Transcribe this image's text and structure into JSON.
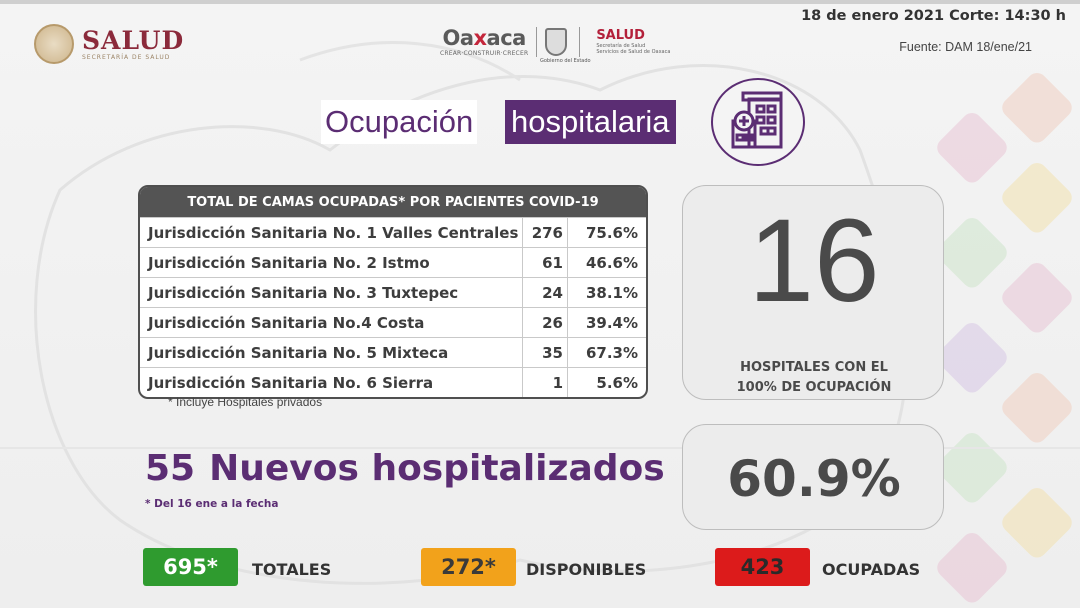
{
  "header": {
    "left_logo_title": "SALUD",
    "left_logo_subtitle": "SECRETARÍA DE SALUD",
    "oaxaca_word_pre": "Oa",
    "oaxaca_word_x": "x",
    "oaxaca_word_post": "aca",
    "oaxaca_slogan": "CREAR·CONSTRUIR·CRECER",
    "gobierno_sub": "Gobierno del Estado",
    "right_logo_title": "SALUD",
    "right_logo_subtitle_1": "Secretaría de Salud",
    "right_logo_subtitle_2": "Servicios de Salud de Oaxaca",
    "date": "18 de enero 2021 Corte: 14:30 h",
    "source": "Fuente: DAM 18/ene/21"
  },
  "title": {
    "part1": "Ocupación",
    "part2": "hospitalaria",
    "icon": "hospital-building-icon"
  },
  "table": {
    "header": "TOTAL DE CAMAS OCUPADAS* POR PACIENTES COVID-19",
    "rows": [
      {
        "name": "Jurisdicción Sanitaria No. 1 Valles Centrales",
        "count": "276",
        "pct": "75.6%"
      },
      {
        "name": "Jurisdicción Sanitaria No. 2 Istmo",
        "count": "61",
        "pct": "46.6%"
      },
      {
        "name": "Jurisdicción Sanitaria No. 3 Tuxtepec",
        "count": "24",
        "pct": "38.1%"
      },
      {
        "name": "Jurisdicción Sanitaria No.4 Costa",
        "count": "26",
        "pct": "39.4%"
      },
      {
        "name": "Jurisdicción Sanitaria No. 5 Mixteca",
        "count": "35",
        "pct": "67.3%"
      },
      {
        "name": "Jurisdicción Sanitaria No. 6 Sierra",
        "count": "1",
        "pct": "5.6%"
      }
    ],
    "note": "* Incluye Hospitales privados"
  },
  "hospitals_full": {
    "value": "16",
    "label_line1": "HOSPITALES CON EL",
    "label_line2": "100% DE OCUPACIÓN"
  },
  "occupancy": {
    "value": "60.9%"
  },
  "new_hospitalized": {
    "count": "55",
    "label": "Nuevos hospitalizados",
    "note": "* Del 16 ene a la fecha"
  },
  "beds": {
    "total_value": "695*",
    "total_label": "TOTALES",
    "available_value": "272*",
    "available_label": "DISPONIBLES",
    "occupied_value": "423",
    "occupied_label": "OCUPADAS"
  },
  "colors": {
    "purple": "#5b2d73",
    "green": "#2f9b2f",
    "orange": "#f2a21b",
    "red": "#dc1b1b"
  }
}
